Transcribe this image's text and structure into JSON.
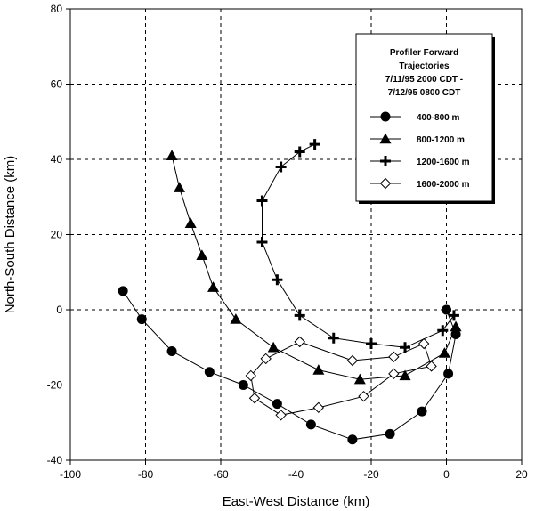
{
  "chart_data": {
    "type": "line",
    "xlabel": "East-West Distance (km)",
    "ylabel": "North-South Distance (km)",
    "xlim": [
      -100,
      20
    ],
    "ylim": [
      -40,
      80
    ],
    "xticks": [
      -100,
      -80,
      -60,
      -40,
      -20,
      0,
      20
    ],
    "yticks": [
      -40,
      -20,
      0,
      20,
      40,
      60,
      80
    ],
    "grid": true,
    "legend_position": "top-right",
    "legend_title": [
      "Profiler Forward",
      "Trajectories",
      "7/11/95 2000 CDT -",
      "7/12/95 0800 CDT"
    ],
    "series": [
      {
        "name": "400-800 m",
        "marker": "circle",
        "points": [
          [
            -86,
            5
          ],
          [
            -81,
            -2.5
          ],
          [
            -73,
            -11
          ],
          [
            -63,
            -16.5
          ],
          [
            -54,
            -20
          ],
          [
            -45,
            -25
          ],
          [
            -36,
            -30.5
          ],
          [
            -25,
            -34.5
          ],
          [
            -15,
            -33
          ],
          [
            -6.5,
            -27
          ],
          [
            0.5,
            -17
          ],
          [
            2.5,
            -6.5
          ],
          [
            0,
            0
          ]
        ]
      },
      {
        "name": "800-1200 m",
        "marker": "triangle",
        "points": [
          [
            -73,
            41
          ],
          [
            -71,
            32.5
          ],
          [
            -68,
            23
          ],
          [
            -65,
            14.5
          ],
          [
            -62,
            6
          ],
          [
            -56,
            -2.5
          ],
          [
            -46,
            -10
          ],
          [
            -34,
            -16
          ],
          [
            -23,
            -18.5
          ],
          [
            -11,
            -17.5
          ],
          [
            -0.5,
            -11.5
          ],
          [
            2.5,
            -4.5
          ]
        ]
      },
      {
        "name": "1200-1600 m",
        "marker": "plus",
        "points": [
          [
            -35,
            44
          ],
          [
            -39,
            42
          ],
          [
            -44,
            38
          ],
          [
            -49,
            29
          ],
          [
            -49,
            18
          ],
          [
            -45,
            8
          ],
          [
            -39,
            -1.5
          ],
          [
            -30,
            -7.5
          ],
          [
            -20,
            -9
          ],
          [
            -11,
            -10
          ],
          [
            -1,
            -5.5
          ],
          [
            2,
            -1.5
          ]
        ]
      },
      {
        "name": "1600-2000 m",
        "marker": "diamond",
        "points": [
          [
            -39,
            -8.5
          ],
          [
            -48,
            -13
          ],
          [
            -52,
            -17.5
          ],
          [
            -51,
            -23.5
          ],
          [
            -44,
            -28
          ],
          [
            -34,
            -26
          ],
          [
            -22,
            -23
          ],
          [
            -14,
            -17
          ],
          [
            -4,
            -15
          ],
          [
            -6,
            -9
          ],
          [
            -14,
            -12.5
          ],
          [
            -25,
            -13.5
          ],
          [
            -39,
            -8.5
          ]
        ]
      }
    ]
  }
}
